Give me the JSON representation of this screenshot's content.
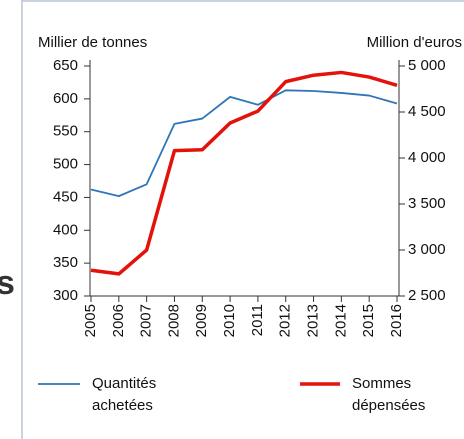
{
  "fragment": "s",
  "chart_data": {
    "type": "line",
    "ylabel": "Millier de tonnes",
    "y2label": "Million d'euros",
    "categories": [
      "2005",
      "2006",
      "2007",
      "2008",
      "2009",
      "2010",
      "2011",
      "2012",
      "2013",
      "2014",
      "2015",
      "2016"
    ],
    "series": [
      {
        "name": "Quantités achetées",
        "color": "#2f76b8",
        "values": [
          462,
          452,
          470,
          562,
          570,
          603,
          591,
          613,
          612,
          609,
          605,
          593
        ]
      },
      {
        "name": "Sommes dépensées",
        "color": "#e3120b",
        "axis": "y2",
        "values": [
          2780,
          2740,
          3000,
          4080,
          4090,
          4380,
          4510,
          4830,
          4900,
          4930,
          4880,
          4790
        ]
      }
    ],
    "ylim": [
      300,
      650
    ],
    "yticks": [
      300,
      350,
      400,
      450,
      500,
      550,
      600,
      650
    ],
    "y2lim": [
      2500,
      5000
    ],
    "y2ticks": [
      {
        "value": 2500,
        "label": "2 500"
      },
      {
        "value": 3000,
        "label": "3 000"
      },
      {
        "value": 3500,
        "label": "3 500"
      },
      {
        "value": 4000,
        "label": "4 000"
      },
      {
        "value": 4500,
        "label": "4 500"
      },
      {
        "value": 5000,
        "label": "5 000"
      }
    ],
    "grid": false
  }
}
